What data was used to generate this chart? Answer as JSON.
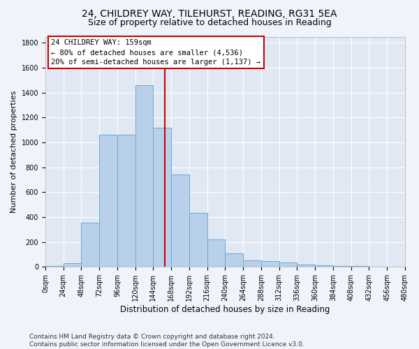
{
  "title1": "24, CHILDREY WAY, TILEHURST, READING, RG31 5EA",
  "title2": "Size of property relative to detached houses in Reading",
  "xlabel": "Distribution of detached houses by size in Reading",
  "ylabel": "Number of detached properties",
  "bin_edges": [
    0,
    24,
    48,
    72,
    96,
    120,
    144,
    168,
    192,
    216,
    240,
    264,
    288,
    312,
    336,
    360,
    384,
    408,
    432,
    456,
    480
  ],
  "counts": [
    10,
    33,
    357,
    1063,
    1063,
    1463,
    1120,
    745,
    435,
    220,
    110,
    52,
    50,
    38,
    20,
    15,
    10,
    8,
    5,
    3
  ],
  "bar_color": "#b8d0ea",
  "bar_edge_color": "#6aaad4",
  "vline_x": 159,
  "vline_color": "#cc0000",
  "annotation_text": "24 CHILDREY WAY: 159sqm\n← 80% of detached houses are smaller (4,536)\n20% of semi-detached houses are larger (1,137) →",
  "annotation_box_color": "#ffffff",
  "annotation_box_edge_color": "#cc0000",
  "ylim": [
    0,
    1850
  ],
  "yticks": [
    0,
    200,
    400,
    600,
    800,
    1000,
    1200,
    1400,
    1600,
    1800
  ],
  "xtick_labels": [
    "0sqm",
    "24sqm",
    "48sqm",
    "72sqm",
    "96sqm",
    "120sqm",
    "144sqm",
    "168sqm",
    "192sqm",
    "216sqm",
    "240sqm",
    "264sqm",
    "288sqm",
    "312sqm",
    "336sqm",
    "360sqm",
    "384sqm",
    "408sqm",
    "432sqm",
    "456sqm",
    "480sqm"
  ],
  "footnote": "Contains HM Land Registry data © Crown copyright and database right 2024.\nContains public sector information licensed under the Open Government Licence v3.0.",
  "bg_color": "#f0f4fa",
  "plot_bg_color": "#e0e8f4",
  "grid_color": "#ffffff",
  "title1_fontsize": 10,
  "title2_fontsize": 9,
  "xlabel_fontsize": 8.5,
  "ylabel_fontsize": 8,
  "tick_fontsize": 7,
  "annotation_fontsize": 7.5,
  "footnote_fontsize": 6.5
}
